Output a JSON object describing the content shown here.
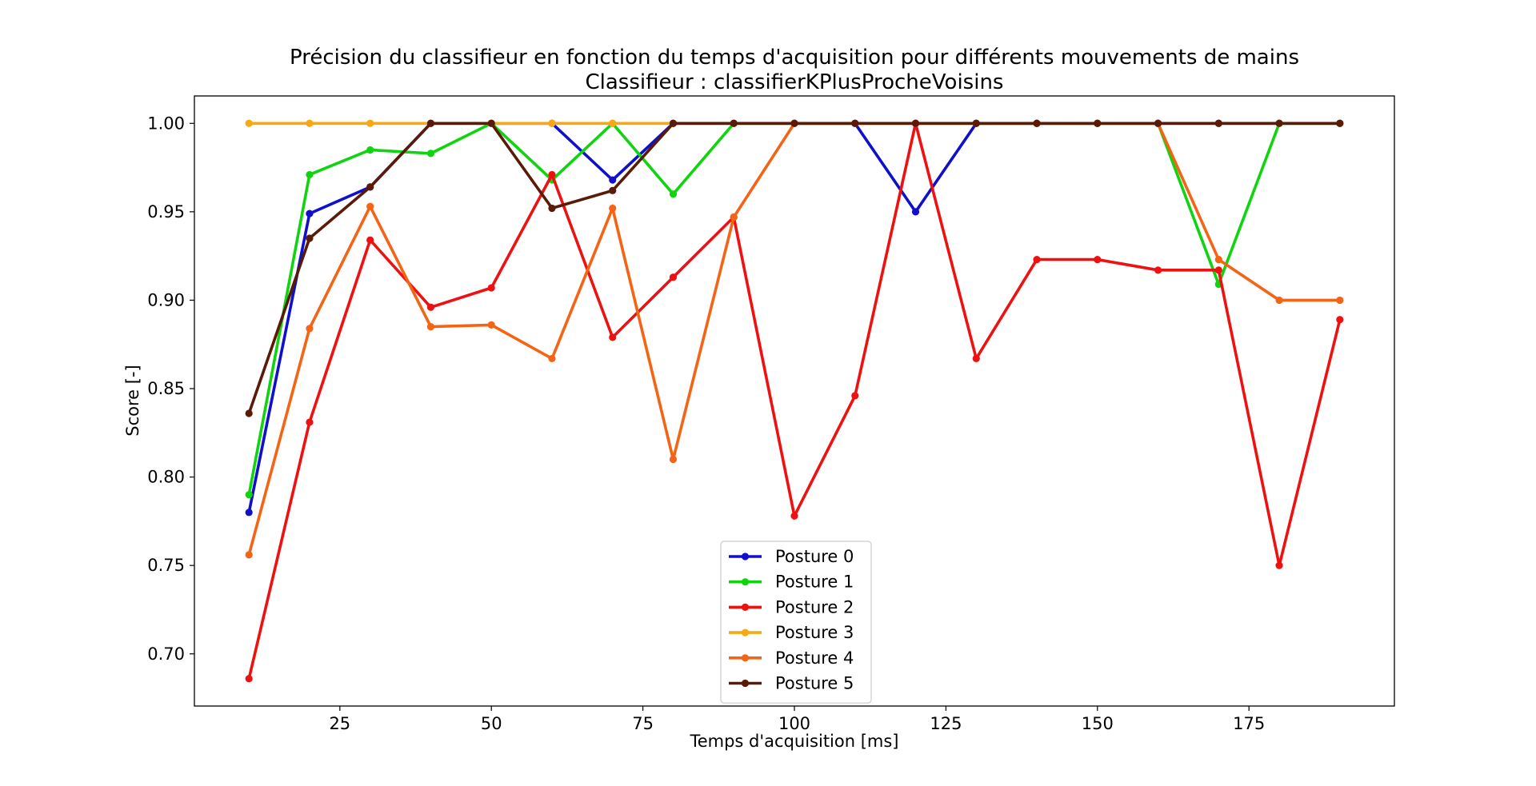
{
  "chart_data": {
    "type": "line",
    "title": "Précision du classifieur en fonction du temps d'acquisition pour différents mouvements de mains",
    "subtitle": "Classifieur : classifierKPlusProcheVoisins",
    "xlabel": "Temps d'acquisition [ms]",
    "ylabel": "Score [-]",
    "xlim": [
      1.0,
      199.0
    ],
    "ylim": [
      0.6705,
      1.0155
    ],
    "xticks": [
      25,
      50,
      75,
      100,
      125,
      150,
      175
    ],
    "xtick_labels": [
      "25",
      "50",
      "75",
      "100",
      "125",
      "150",
      "175"
    ],
    "yticks": [
      0.7,
      0.75,
      0.8,
      0.85,
      0.9,
      0.95,
      1.0
    ],
    "ytick_labels": [
      "0.70",
      "0.75",
      "0.80",
      "0.85",
      "0.90",
      "0.95",
      "1.00"
    ],
    "grid": false,
    "legend_position": "lower center",
    "x": [
      10,
      20,
      30,
      40,
      50,
      60,
      70,
      80,
      90,
      100,
      110,
      120,
      130,
      140,
      150,
      160,
      170,
      180,
      190
    ],
    "series": [
      {
        "name": "Posture 0",
        "color": "#1010cc",
        "values": [
          0.78,
          0.949,
          0.964,
          1.0,
          1.0,
          1.0,
          0.968,
          1.0,
          1.0,
          1.0,
          1.0,
          0.95,
          1.0,
          1.0,
          1.0,
          1.0,
          1.0,
          1.0,
          1.0
        ]
      },
      {
        "name": "Posture 1",
        "color": "#11d411",
        "values": [
          0.79,
          0.971,
          0.985,
          0.983,
          1.0,
          0.968,
          1.0,
          0.96,
          1.0,
          1.0,
          1.0,
          1.0,
          1.0,
          1.0,
          1.0,
          1.0,
          0.909,
          1.0,
          1.0
        ]
      },
      {
        "name": "Posture 2",
        "color": "#ee1111",
        "values": [
          0.686,
          0.831,
          0.934,
          0.896,
          0.907,
          0.971,
          0.879,
          0.913,
          0.947,
          0.778,
          0.846,
          1.0,
          0.867,
          0.923,
          0.923,
          0.917,
          0.917,
          0.75,
          0.889
        ]
      },
      {
        "name": "Posture 3",
        "color": "#f8a811",
        "values": [
          1.0,
          1.0,
          1.0,
          1.0,
          1.0,
          1.0,
          1.0,
          1.0,
          1.0,
          1.0,
          1.0,
          1.0,
          1.0,
          1.0,
          1.0,
          1.0,
          1.0,
          1.0,
          1.0
        ]
      },
      {
        "name": "Posture 4",
        "color": "#f46414",
        "values": [
          0.756,
          0.884,
          0.953,
          0.885,
          0.886,
          0.867,
          0.952,
          0.81,
          0.947,
          1.0,
          1.0,
          1.0,
          1.0,
          1.0,
          1.0,
          1.0,
          0.923,
          0.9,
          0.9
        ]
      },
      {
        "name": "Posture 5",
        "color": "#5a1a08",
        "values": [
          0.836,
          0.935,
          0.964,
          1.0,
          1.0,
          0.952,
          0.962,
          1.0,
          1.0,
          1.0,
          1.0,
          1.0,
          1.0,
          1.0,
          1.0,
          1.0,
          1.0,
          1.0,
          1.0
        ]
      }
    ]
  }
}
